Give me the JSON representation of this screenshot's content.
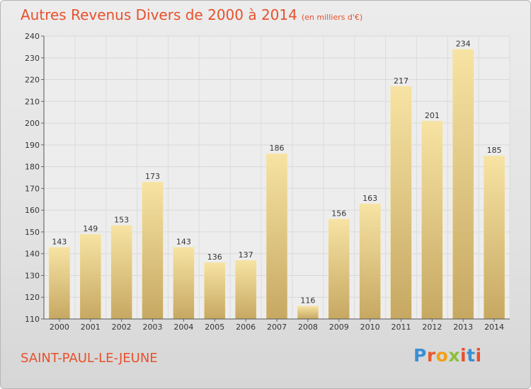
{
  "title": "Autres Revenus Divers de 2000 à 2014",
  "unit": "(en milliers d'€)",
  "commune": "SAINT-PAUL-LE-JEUNE",
  "brand": "Proxiti",
  "brand_colors": [
    "#3a8fd4",
    "#e85a2a",
    "#f0a018",
    "#8ac03a",
    "#e8502c",
    "#3a8fd4",
    "#e8502c"
  ],
  "colors": {
    "title": "#e8502c",
    "bar_light": "#f7e3a3",
    "bar_dark": "#c6a862"
  },
  "chart_data": {
    "type": "bar",
    "categories": [
      "2000",
      "2001",
      "2002",
      "2003",
      "2004",
      "2005",
      "2006",
      "2007",
      "2008",
      "2009",
      "2010",
      "2011",
      "2012",
      "2013",
      "2014"
    ],
    "values": [
      143,
      149,
      153,
      173,
      143,
      136,
      137,
      186,
      116,
      156,
      163,
      217,
      201,
      234,
      185
    ],
    "ylim": [
      110,
      240
    ],
    "yticks": [
      110,
      120,
      130,
      140,
      150,
      160,
      170,
      180,
      190,
      200,
      210,
      220,
      230,
      240
    ],
    "grid": true,
    "legend": "none"
  }
}
